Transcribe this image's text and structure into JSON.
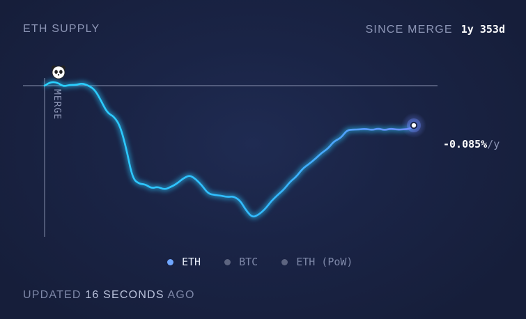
{
  "header": {
    "title": "ETH SUPPLY",
    "since_label": "SINCE MERGE",
    "since_value": "1y 353d"
  },
  "current_rate": {
    "value": "-0.085%",
    "unit": "/y"
  },
  "legend": [
    {
      "label": "ETH",
      "active": true
    },
    {
      "label": "BTC",
      "active": false
    },
    {
      "label": "ETH (PoW)",
      "active": false
    }
  ],
  "footer": {
    "prefix": "UPDATED",
    "amount": "16 SECONDS",
    "suffix": "AGO"
  },
  "icons": {
    "merge_marker": "panda-icon"
  },
  "colors": {
    "line_start": "#29d2ff",
    "line_end": "#6f8cff",
    "active_dot": "#6fa6ff",
    "baseline": "#8a93b0"
  },
  "chart_data": {
    "type": "line",
    "title": "ETH SUPPLY",
    "annotations": [
      "MERGE"
    ],
    "xlabel": "",
    "ylabel": "",
    "x_unit": "days since merge",
    "y_unit": "relative supply (0 at merge)",
    "xlim": [
      0,
      718
    ],
    "ylim": [
      -1.0,
      0.12
    ],
    "baseline": 0,
    "series": [
      {
        "name": "ETH",
        "x": [
          0,
          12,
          24,
          37,
          49,
          61,
          73,
          86,
          98,
          110,
          122,
          135,
          147,
          159,
          171,
          184,
          196,
          208,
          220,
          233,
          245,
          257,
          269,
          282,
          294,
          306,
          318,
          331,
          343,
          355,
          367,
          380,
          392,
          404,
          416,
          429,
          441,
          453,
          465,
          478,
          490,
          502,
          514,
          527,
          539,
          551,
          563,
          576,
          588,
          600,
          612,
          624,
          637,
          649,
          661,
          673,
          686,
          698,
          710,
          718
        ],
        "values": [
          0.0,
          0.03,
          0.02,
          0.0,
          0.0,
          0.01,
          0.015,
          0.0,
          -0.03,
          -0.12,
          -0.2,
          -0.24,
          -0.3,
          -0.48,
          -0.7,
          -0.74,
          -0.75,
          -0.77,
          -0.77,
          -0.78,
          -0.77,
          -0.74,
          -0.7,
          -0.68,
          -0.7,
          -0.76,
          -0.81,
          -0.83,
          -0.83,
          -0.84,
          -0.84,
          -0.86,
          -0.95,
          -0.99,
          -0.98,
          -0.93,
          -0.87,
          -0.83,
          -0.78,
          -0.73,
          -0.68,
          -0.63,
          -0.59,
          -0.55,
          -0.51,
          -0.47,
          -0.425,
          -0.39,
          -0.34,
          -0.33,
          -0.33,
          -0.33,
          -0.33,
          -0.33,
          -0.33,
          -0.33,
          -0.33,
          -0.33,
          -0.33,
          -0.3
        ]
      }
    ],
    "grid": false,
    "legend_position": "bottom-center"
  }
}
